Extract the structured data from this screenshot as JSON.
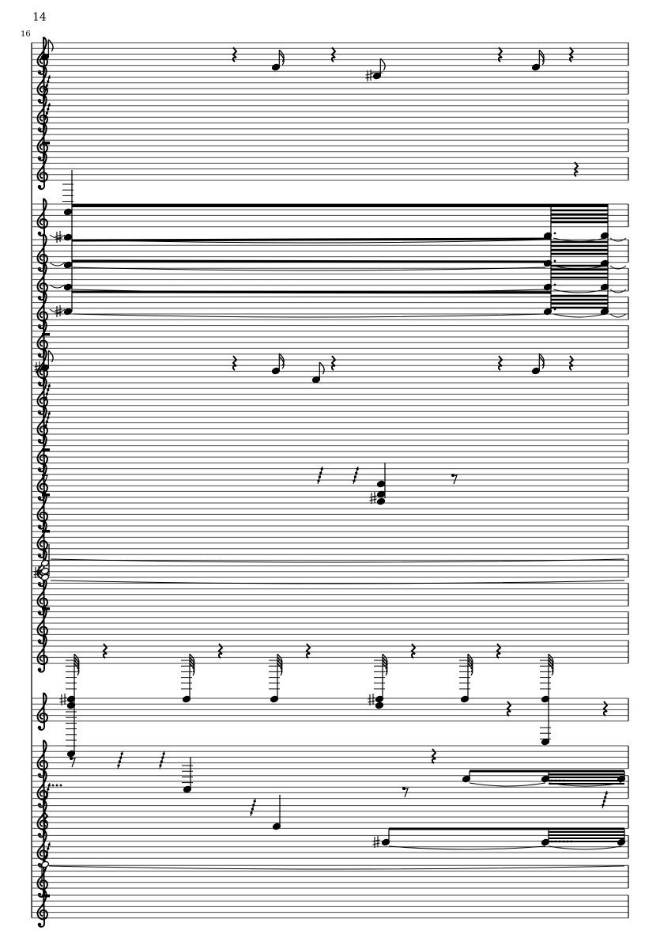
{
  "page": {
    "number": "14"
  },
  "score": {
    "measure_number": "16",
    "staff_count": 28,
    "clef": "treble-clef-icon",
    "ink_color": "#000000"
  }
}
